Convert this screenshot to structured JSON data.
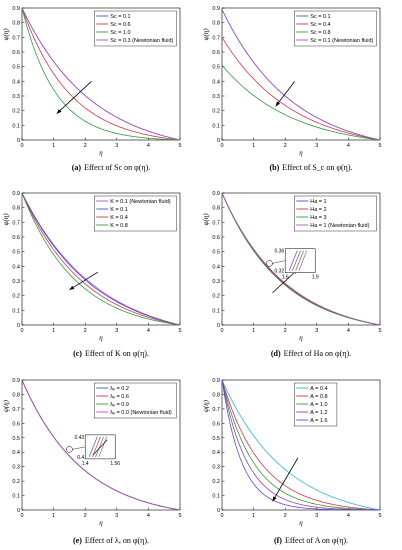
{
  "colors": {
    "blue": "#3b55c8",
    "red": "#d2344e",
    "green": "#2f9a3a",
    "magenta": "#b04fbf",
    "cyan": "#2fb3d8",
    "purple": "#9b3fb0",
    "indigo": "#5a4ec8"
  },
  "chart_data": [
    {
      "type": "line",
      "caption_label": "(a)",
      "caption_text": "Effect of Sc on φ(η).",
      "xlabel": "η",
      "ylabel": "φ(η)",
      "xlim": [
        0,
        5
      ],
      "ylim": [
        0,
        0.9
      ],
      "xticks": [
        "0",
        "1",
        "2",
        "3",
        "4",
        "5"
      ],
      "yticks": [
        "0",
        "0.1",
        "0.2",
        "0.3",
        "0.4",
        "0.5",
        "0.6",
        "0.7",
        "0.8",
        "0.9"
      ],
      "legend": "top-right",
      "arrow": {
        "from": [
          2.2,
          0.4
        ],
        "to": [
          1.1,
          0.18
        ]
      },
      "series": [
        {
          "name": "Sc = 0.1",
          "color": "blue",
          "start": 0.9,
          "k": 0.45
        },
        {
          "name": "Sc = 0.6",
          "color": "red",
          "start": 0.9,
          "k": 0.65
        },
        {
          "name": "Sc = 1.0",
          "color": "green",
          "start": 0.9,
          "k": 0.95
        },
        {
          "name": "Sc = 0.3 (Newtonian fluid)",
          "color": "magenta",
          "start": 0.9,
          "k": 0.45
        }
      ]
    },
    {
      "type": "line",
      "caption_label": "(b)",
      "caption_text": "Effect of S_c on φ(η).",
      "xlabel": "η",
      "ylabel": "φ(η)",
      "xlim": [
        0,
        5
      ],
      "ylim": [
        0,
        0.9
      ],
      "xticks": [
        "0",
        "1",
        "2",
        "3",
        "4",
        "5"
      ],
      "yticks": [
        "0",
        "0.1",
        "0.2",
        "0.3",
        "0.4",
        "0.5",
        "0.6",
        "0.7",
        "0.8",
        "0.9"
      ],
      "legend": "top-right",
      "arrow": {
        "from": [
          2.3,
          0.4
        ],
        "to": [
          1.7,
          0.23
        ]
      },
      "series": [
        {
          "name": "Sc = 0.1",
          "color": "blue",
          "start": 0.89,
          "k": 0.45
        },
        {
          "name": "Sc = 0.4",
          "color": "red",
          "start": 0.7,
          "k": 0.45
        },
        {
          "name": "Sc = 0.8",
          "color": "green",
          "start": 0.51,
          "k": 0.45
        },
        {
          "name": "Sc = 0.1 (Newtonian fluid)",
          "color": "magenta",
          "start": 0.89,
          "k": 0.45
        }
      ]
    },
    {
      "type": "line",
      "caption_label": "(c)",
      "caption_text": "Effect of K on φ(η).",
      "xlabel": "η",
      "ylabel": "φ(η)",
      "xlim": [
        0,
        5
      ],
      "ylim": [
        0,
        0.9
      ],
      "xticks": [
        "0",
        "1",
        "2",
        "3",
        "4",
        "5"
      ],
      "yticks": [
        "0",
        "0.1",
        "0.2",
        "0.3",
        "0.4",
        "0.5",
        "0.6",
        "0.7",
        "0.8",
        "0.9"
      ],
      "legend": "top-right",
      "arrow": {
        "from": [
          2.4,
          0.36
        ],
        "to": [
          1.5,
          0.24
        ]
      },
      "series": [
        {
          "name": "K = 0.1 (Newtonian fluid)",
          "color": "magenta",
          "start": 0.9,
          "k": 0.42
        },
        {
          "name": "K = 0.1",
          "color": "blue",
          "start": 0.9,
          "k": 0.44
        },
        {
          "name": "K = 0.4",
          "color": "red",
          "start": 0.9,
          "k": 0.5
        },
        {
          "name": "K = 0.8",
          "color": "green",
          "start": 0.9,
          "k": 0.58
        }
      ]
    },
    {
      "type": "line",
      "caption_label": "(d)",
      "caption_text": "Effect of Ha on φ(η).",
      "xlabel": "η",
      "ylabel": "φ(η)",
      "xlim": [
        0,
        5
      ],
      "ylim": [
        0,
        0.9
      ],
      "xticks": [
        "0",
        "1",
        "2",
        "3",
        "4",
        "5"
      ],
      "yticks": [
        "0",
        "0.1",
        "0.2",
        "0.3",
        "0.4",
        "0.5",
        "0.6",
        "0.7",
        "0.8",
        "0.9"
      ],
      "legend": "top-right",
      "arrow": {
        "from": [
          1.6,
          0.22
        ],
        "to": [
          2.4,
          0.38
        ]
      },
      "inset": {
        "xticks": [
          "1.6",
          "1.9"
        ],
        "yticks": [
          "0.36",
          "0.32"
        ]
      },
      "series": [
        {
          "name": "Ha = 1",
          "color": "blue",
          "start": 0.9,
          "k": 0.5
        },
        {
          "name": "Ha = 2",
          "color": "red",
          "start": 0.9,
          "k": 0.51
        },
        {
          "name": "Ha = 3",
          "color": "green",
          "start": 0.9,
          "k": 0.52
        },
        {
          "name": "Ha = 1 (Newtonian fluid)",
          "color": "magenta",
          "start": 0.9,
          "k": 0.49
        }
      ]
    },
    {
      "type": "line",
      "caption_label": "(e)",
      "caption_text": "Effect of λₑ on φ(η).",
      "xlabel": "η",
      "ylabel": "φ(η)",
      "xlim": [
        0,
        5
      ],
      "ylim": [
        0,
        0.9
      ],
      "xticks": [
        "0",
        "1",
        "2",
        "3",
        "4",
        "5"
      ],
      "yticks": [
        "0",
        "0.1",
        "0.2",
        "0.3",
        "0.4",
        "0.5",
        "0.6",
        "0.7",
        "0.8",
        "0.9"
      ],
      "legend": "top-right",
      "inset": {
        "xticks": [
          "1.4",
          "1.56"
        ],
        "yticks": [
          "0.43",
          "0.4"
        ]
      },
      "series": [
        {
          "name": "λₑ = 0.2",
          "color": "blue",
          "start": 0.9,
          "k": 0.52
        },
        {
          "name": "λₑ = 0.6",
          "color": "red",
          "start": 0.9,
          "k": 0.52
        },
        {
          "name": "λₑ = 0.9",
          "color": "green",
          "start": 0.9,
          "k": 0.52
        },
        {
          "name": "λₑ = 0.0 (Newtonian fluid)",
          "color": "magenta",
          "start": 0.9,
          "k": 0.52
        }
      ]
    },
    {
      "type": "line",
      "caption_label": "(f)",
      "caption_text": "Effect of A on φ(η).",
      "xlabel": "η",
      "ylabel": "φ(η)",
      "xlim": [
        0,
        5
      ],
      "ylim": [
        0,
        0.9
      ],
      "xticks": [
        "0",
        "1",
        "2",
        "3",
        "4",
        "5"
      ],
      "yticks": [
        "0",
        "0.1",
        "0.2",
        "0.3",
        "0.4",
        "0.5",
        "0.6",
        "0.7",
        "0.8",
        "0.9"
      ],
      "legend": "top-right",
      "arrow": {
        "from": [
          2.4,
          0.36
        ],
        "to": [
          1.6,
          0.06
        ]
      },
      "series": [
        {
          "name": "A = 0.4",
          "color": "cyan",
          "start": 0.9,
          "k": 0.5
        },
        {
          "name": "A = 0.8",
          "color": "red",
          "start": 0.9,
          "k": 0.8
        },
        {
          "name": "A = 1.0",
          "color": "green",
          "start": 0.9,
          "k": 1.0
        },
        {
          "name": "A = 1.2",
          "color": "purple",
          "start": 0.9,
          "k": 1.25
        },
        {
          "name": "A = 1.6",
          "color": "indigo",
          "start": 0.9,
          "k": 1.6
        }
      ]
    }
  ]
}
